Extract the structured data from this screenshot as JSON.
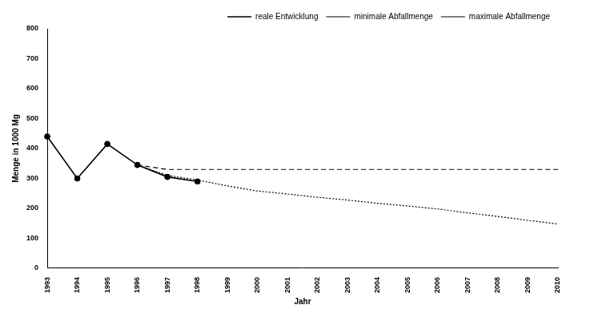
{
  "chart_data": {
    "type": "line",
    "x_label": "Jahr",
    "y_label": "Menge in 1000 Mg",
    "categories": [
      "1993",
      "1994",
      "1995",
      "1996",
      "1997",
      "1998",
      "1999",
      "2000",
      "2001",
      "2002",
      "2003",
      "2004",
      "2005",
      "2006",
      "2007",
      "2008",
      "2009",
      "2010"
    ],
    "series": [
      {
        "name": "reale Entwicklung",
        "color": "#000000",
        "marker": "circle",
        "line_style": "solid",
        "values": [
          440,
          300,
          415,
          345,
          305,
          290,
          null,
          null,
          null,
          null,
          null,
          null,
          null,
          null,
          null,
          null,
          null,
          null
        ]
      },
      {
        "name": "minimale Abfallmenge",
        "color": "#000000",
        "marker": "none",
        "line_style": "dotted",
        "values": [
          null,
          null,
          null,
          345,
          310,
          295,
          275,
          258,
          248,
          237,
          228,
          217,
          208,
          198,
          185,
          173,
          160,
          148
        ]
      },
      {
        "name": "maximale Abfallmenge",
        "color": "#000000",
        "marker": "none",
        "line_style": "dashed",
        "values": [
          null,
          null,
          null,
          345,
          330,
          330,
          330,
          330,
          330,
          330,
          330,
          330,
          330,
          330,
          330,
          330,
          330,
          330
        ]
      }
    ],
    "ylim": [
      0,
      800
    ],
    "yticks": [
      0,
      100,
      200,
      300,
      400,
      500,
      600,
      700,
      800
    ],
    "grid": false,
    "legend": "upper right"
  }
}
